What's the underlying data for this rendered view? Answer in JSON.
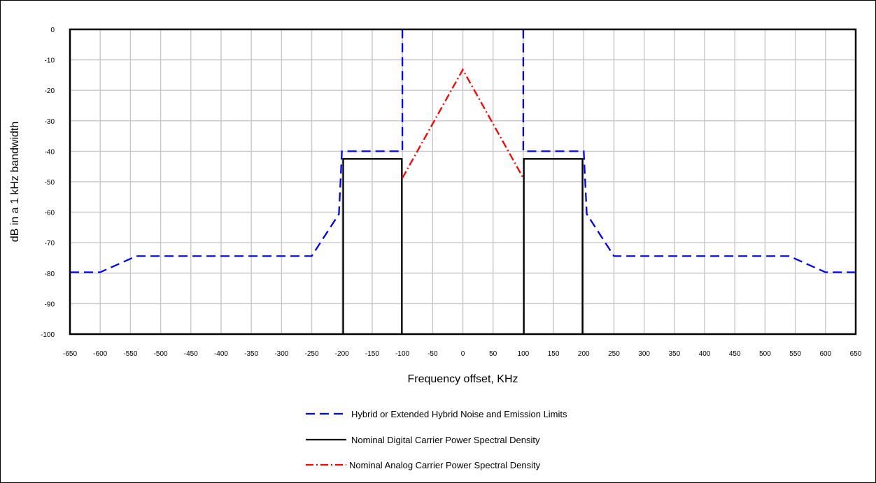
{
  "chart_data": {
    "type": "line",
    "title": "",
    "xlabel": "Frequency offset, KHz",
    "ylabel": "dB in a 1 kHz bandwidth",
    "xlim": [
      -650,
      650
    ],
    "ylim": [
      -100,
      0
    ],
    "x_ticks": [
      -650,
      -600,
      -550,
      -500,
      -450,
      -400,
      -350,
      -300,
      -250,
      -200,
      -150,
      -100,
      -50,
      0,
      50,
      100,
      150,
      200,
      250,
      300,
      350,
      400,
      450,
      500,
      550,
      600,
      650
    ],
    "y_ticks": [
      0,
      -10,
      -20,
      -30,
      -40,
      -50,
      -60,
      -70,
      -80,
      -90,
      -100
    ],
    "grid": true,
    "legend_position": "bottom-center",
    "series": [
      {
        "name": "Hybrid or Extended Hybrid Noise and Emission Limits",
        "color": "#0000ff",
        "style": "dashed",
        "segments": [
          [
            [
              -650,
              -79.7
            ],
            [
              -600,
              -79.7
            ],
            [
              -540,
              -74.4
            ],
            [
              -250,
              -74.4
            ],
            [
              -205,
              -60.6
            ],
            [
              -200,
              -40
            ],
            [
              -100,
              -40
            ],
            [
              -100,
              0
            ]
          ],
          [
            [
              100,
              0
            ],
            [
              100,
              -40
            ],
            [
              200,
              -40
            ],
            [
              205,
              -60.6
            ],
            [
              250,
              -74.4
            ],
            [
              540,
              -74.4
            ],
            [
              600,
              -79.7
            ],
            [
              650,
              -79.7
            ]
          ]
        ]
      },
      {
        "name": "Nominal Digital Carrier Power Spectral Density",
        "color": "#000000",
        "style": "solid",
        "segments": [
          [
            [
              -198,
              -100
            ],
            [
              -198,
              -42.5
            ],
            [
              -101,
              -42.5
            ],
            [
              -101,
              -100
            ]
          ],
          [
            [
              101,
              -100
            ],
            [
              101,
              -42.5
            ],
            [
              198,
              -42.5
            ],
            [
              198,
              -100
            ]
          ]
        ]
      },
      {
        "name": "Nominal Analog Carrier Power Spectral Density",
        "color": "#ff0000",
        "style": "dash-dot",
        "segments": [
          [
            [
              -100,
              -48.8
            ],
            [
              0,
              -13.2
            ],
            [
              100,
              -48.8
            ]
          ]
        ]
      }
    ]
  }
}
